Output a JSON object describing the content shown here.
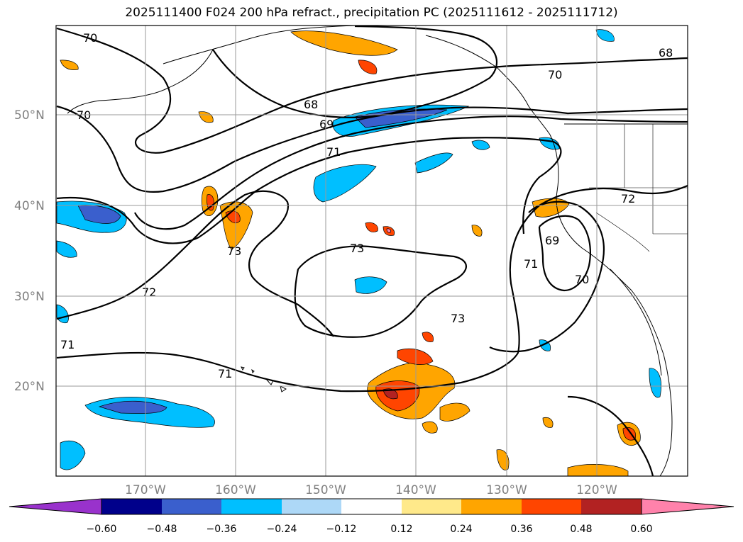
{
  "title": "2025111400 F024 200 hPa refract., precipitation PC (2025111612 - 2025111712)",
  "map": {
    "lat_labels": [
      "50°N",
      "40°N",
      "30°N",
      "20°N"
    ],
    "lon_labels": [
      "170°W",
      "160°W",
      "150°W",
      "140°W",
      "130°W",
      "120°W"
    ],
    "contour_levels_shown": [
      "68",
      "69",
      "70",
      "71",
      "72",
      "73"
    ],
    "contour_labels": [
      "70",
      "70",
      "68",
      "69",
      "71",
      "73",
      "72",
      "71",
      "73",
      "71",
      "73",
      "69",
      "70",
      "72",
      "70",
      "68",
      "71"
    ]
  },
  "colorbar": {
    "ticks": [
      "−0.60",
      "−0.48",
      "−0.36",
      "−0.24",
      "−0.12",
      "0.12",
      "0.24",
      "0.36",
      "0.48",
      "0.60"
    ],
    "colors": [
      "#9932cc",
      "#00008b",
      "#3a5fcd",
      "#00bfff",
      "#add8f7",
      "#ffffff",
      "#ffe98a",
      "#ffa500",
      "#ff4500",
      "#b22222",
      "#ff82ab"
    ]
  }
}
